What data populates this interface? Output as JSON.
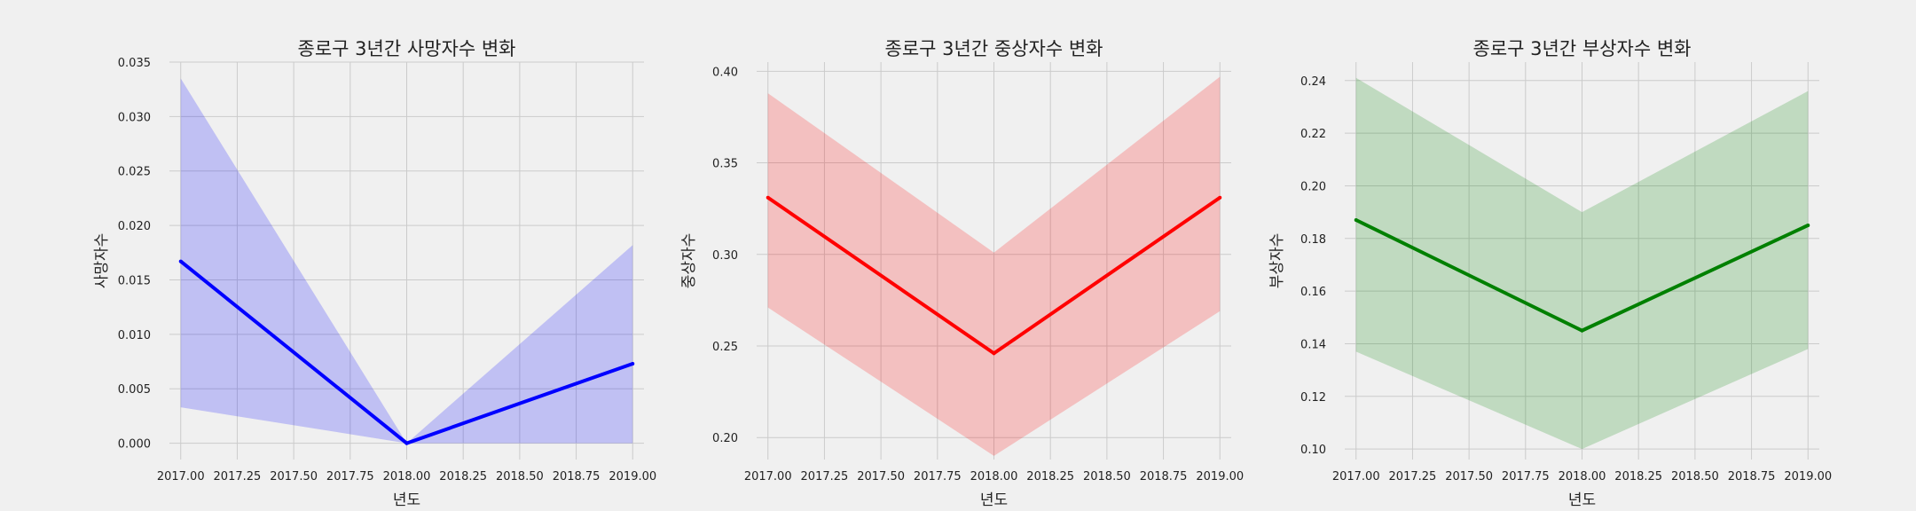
{
  "chart_data": [
    {
      "type": "line",
      "title": "종로구 3년간 사망자수 변화",
      "xlabel": "년도",
      "ylabel": "사망자수",
      "color": "#0000ff",
      "band_color": "#0000ff",
      "x": [
        2017.0,
        2018.0,
        2019.0
      ],
      "series": [
        {
          "values": [
            0.0167,
            0.0,
            0.0073
          ],
          "ci_lower": [
            0.0033,
            0.0,
            0.0
          ],
          "ci_upper": [
            0.0335,
            0.0,
            0.0182
          ]
        }
      ],
      "xlim": [
        2016.95,
        2019.05
      ],
      "ylim": [
        -0.0015,
        0.035
      ],
      "xticks": [
        2017.0,
        2017.25,
        2017.5,
        2017.75,
        2018.0,
        2018.25,
        2018.5,
        2018.75,
        2019.0
      ],
      "xtick_labels": [
        "2017.00",
        "2017.25",
        "2017.50",
        "2017.75",
        "2018.00",
        "2018.25",
        "2018.50",
        "2018.75",
        "2019.00"
      ],
      "yticks": [
        0.0,
        0.005,
        0.01,
        0.015,
        0.02,
        0.025,
        0.03,
        0.035
      ],
      "ytick_labels": [
        "0.000",
        "0.005",
        "0.010",
        "0.015",
        "0.020",
        "0.025",
        "0.030",
        "0.035"
      ],
      "grid": true
    },
    {
      "type": "line",
      "title": "종로구 3년간 중상자수 변화",
      "xlabel": "년도",
      "ylabel": "중상자수",
      "color": "#ff0000",
      "band_color": "#ff0000",
      "x": [
        2017.0,
        2018.0,
        2019.0
      ],
      "series": [
        {
          "values": [
            0.331,
            0.246,
            0.331
          ],
          "ci_lower": [
            0.271,
            0.19,
            0.269
          ],
          "ci_upper": [
            0.388,
            0.301,
            0.397
          ]
        }
      ],
      "xlim": [
        2016.95,
        2019.05
      ],
      "ylim": [
        0.188,
        0.405
      ],
      "xticks": [
        2017.0,
        2017.25,
        2017.5,
        2017.75,
        2018.0,
        2018.25,
        2018.5,
        2018.75,
        2019.0
      ],
      "xtick_labels": [
        "2017.00",
        "2017.25",
        "2017.50",
        "2017.75",
        "2018.00",
        "2018.25",
        "2018.50",
        "2018.75",
        "2019.00"
      ],
      "yticks": [
        0.2,
        0.25,
        0.3,
        0.35,
        0.4
      ],
      "ytick_labels": [
        "0.20",
        "0.25",
        "0.30",
        "0.35",
        "0.40"
      ],
      "grid": true
    },
    {
      "type": "line",
      "title": "종로구 3년간 부상자수 변화",
      "xlabel": "년도",
      "ylabel": "부상자수",
      "color": "#008000",
      "band_color": "#008000",
      "x": [
        2017.0,
        2018.0,
        2019.0
      ],
      "series": [
        {
          "values": [
            0.187,
            0.145,
            0.185
          ],
          "ci_lower": [
            0.137,
            0.1,
            0.138
          ],
          "ci_upper": [
            0.241,
            0.19,
            0.236
          ]
        }
      ],
      "xlim": [
        2016.95,
        2019.05
      ],
      "ylim": [
        0.096,
        0.247
      ],
      "xticks": [
        2017.0,
        2017.25,
        2017.5,
        2017.75,
        2018.0,
        2018.25,
        2018.5,
        2018.75,
        2019.0
      ],
      "xtick_labels": [
        "2017.00",
        "2017.25",
        "2017.50",
        "2017.75",
        "2018.00",
        "2018.25",
        "2018.50",
        "2018.75",
        "2019.00"
      ],
      "yticks": [
        0.1,
        0.12,
        0.14,
        0.16,
        0.18,
        0.2,
        0.22,
        0.24
      ],
      "ytick_labels": [
        "0.10",
        "0.12",
        "0.14",
        "0.16",
        "0.18",
        "0.20",
        "0.22",
        "0.24"
      ],
      "grid": true
    }
  ]
}
